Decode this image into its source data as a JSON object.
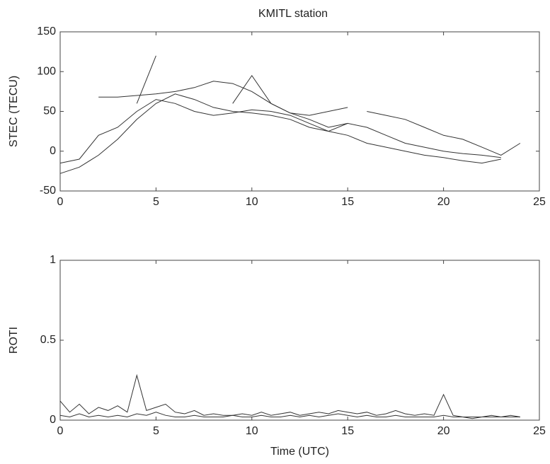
{
  "chart_data": [
    {
      "type": "line",
      "title": "KMITL station",
      "ylabel": "STEC (TECU)",
      "x": [
        0,
        1,
        2,
        3,
        4,
        5,
        6,
        7,
        8,
        9,
        10,
        11,
        12,
        13,
        14,
        15,
        16,
        17,
        18,
        19,
        20,
        21,
        22,
        23,
        24
      ],
      "series": [
        {
          "color": "#333333",
          "values": [
            -28,
            -20,
            -5,
            15,
            40,
            60,
            72,
            65,
            55,
            50,
            48,
            45,
            40,
            30,
            25,
            20,
            10,
            5,
            0,
            -5,
            -8,
            -12,
            -15,
            -10,
            null
          ]
        },
        {
          "color": "#333333",
          "values": [
            null,
            null,
            68,
            68,
            70,
            72,
            75,
            80,
            88,
            85,
            75,
            60,
            48,
            45,
            50,
            55,
            null,
            null,
            null,
            null,
            null,
            null,
            null,
            null,
            null
          ]
        },
        {
          "color": "#333333",
          "values": [
            -15,
            -10,
            20,
            30,
            50,
            65,
            60,
            50,
            45,
            48,
            52,
            50,
            45,
            35,
            25,
            35,
            30,
            20,
            10,
            5,
            0,
            -3,
            -5,
            -8,
            null
          ]
        },
        {
          "color": "#333333",
          "values": [
            null,
            null,
            null,
            null,
            60,
            120,
            null,
            null,
            null,
            null,
            null,
            null,
            null,
            null,
            null,
            null,
            null,
            null,
            null,
            null,
            null,
            null,
            null,
            null,
            null
          ]
        },
        {
          "color": "#333333",
          "values": [
            null,
            null,
            null,
            null,
            null,
            null,
            null,
            null,
            null,
            60,
            95,
            60,
            48,
            40,
            30,
            35,
            null,
            null,
            null,
            null,
            null,
            null,
            null,
            null,
            null
          ]
        },
        {
          "color": "#333333",
          "values": [
            null,
            null,
            null,
            null,
            null,
            null,
            null,
            null,
            null,
            null,
            null,
            null,
            null,
            null,
            null,
            null,
            50,
            45,
            40,
            30,
            20,
            15,
            5,
            -5,
            10
          ]
        }
      ],
      "xlim": [
        0,
        25
      ],
      "xticks": [
        0,
        5,
        10,
        15,
        20,
        25
      ],
      "ylim": [
        -50,
        150
      ],
      "yticks": [
        -50,
        0,
        50,
        100,
        150
      ]
    },
    {
      "type": "line",
      "ylabel": "ROTI",
      "xlabel": "Time (UTC)",
      "x": [
        0,
        0.5,
        1,
        1.5,
        2,
        2.5,
        3,
        3.5,
        4,
        4.5,
        5,
        5.5,
        6,
        6.5,
        7,
        7.5,
        8,
        8.5,
        9,
        9.5,
        10,
        10.5,
        11,
        11.5,
        12,
        12.5,
        13,
        13.5,
        14,
        14.5,
        15,
        15.5,
        16,
        16.5,
        17,
        17.5,
        18,
        18.5,
        19,
        19.5,
        20,
        20.5,
        21,
        21.5,
        22,
        22.5,
        23,
        23.5,
        24
      ],
      "series": [
        {
          "color": "#333333",
          "values": [
            0.12,
            0.05,
            0.1,
            0.04,
            0.08,
            0.06,
            0.09,
            0.05,
            0.28,
            0.06,
            0.08,
            0.1,
            0.05,
            0.04,
            0.06,
            0.03,
            0.04,
            0.03,
            0.03,
            0.04,
            0.03,
            0.05,
            0.03,
            0.04,
            0.05,
            0.03,
            0.04,
            0.05,
            0.04,
            0.06,
            0.05,
            0.04,
            0.05,
            0.03,
            0.04,
            0.06,
            0.04,
            0.03,
            0.04,
            0.03,
            0.16,
            0.03,
            0.02,
            0.02,
            0.02,
            0.03,
            0.02,
            0.03,
            0.02
          ]
        },
        {
          "color": "#333333",
          "values": [
            0.03,
            0.02,
            0.04,
            0.02,
            0.03,
            0.02,
            0.03,
            0.02,
            0.04,
            0.03,
            0.05,
            0.03,
            0.02,
            0.02,
            0.03,
            0.02,
            0.02,
            0.02,
            0.03,
            0.02,
            0.02,
            0.03,
            0.02,
            0.02,
            0.03,
            0.02,
            0.03,
            0.02,
            0.03,
            0.04,
            0.03,
            0.02,
            0.03,
            0.02,
            0.02,
            0.03,
            0.02,
            0.02,
            0.02,
            0.02,
            0.03,
            0.02,
            0.02,
            0.01,
            0.02,
            0.02,
            0.02,
            0.02,
            0.02
          ]
        }
      ],
      "xlim": [
        0,
        25
      ],
      "xticks": [
        0,
        5,
        10,
        15,
        20,
        25
      ],
      "ylim": [
        0,
        1
      ],
      "yticks": [
        0,
        0.5,
        1
      ]
    }
  ]
}
